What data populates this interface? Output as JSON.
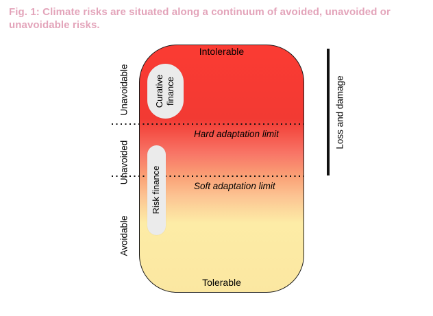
{
  "figure": {
    "caption": "Fig. 1: Climate risks are situated along a continuum of avoided, unavoided or unavoidable risks.",
    "caption_color": "#e3a4ba"
  },
  "diagram": {
    "type": "risk-continuum-diagram",
    "top_region_label": "Intolerable",
    "bottom_region_label": "Tolerable",
    "left_axis_labels": {
      "unavoidable": "Unavoidable",
      "unavoided": "Unavoided",
      "avoidable": "Avoidable"
    },
    "right_bracket_label": "Loss and damage",
    "hard_limit_label": "Hard adaptation limit",
    "soft_limit_label": "Soft adaptation limit",
    "curative_pill_label": "Curative finance",
    "risk_pill_label": "Risk finance",
    "colors": {
      "intolerable_red": "#fb3b33",
      "tolerable_yellow": "#fbe7a1",
      "pill_gray": "#ebebeb",
      "line_black": "#111111"
    }
  }
}
